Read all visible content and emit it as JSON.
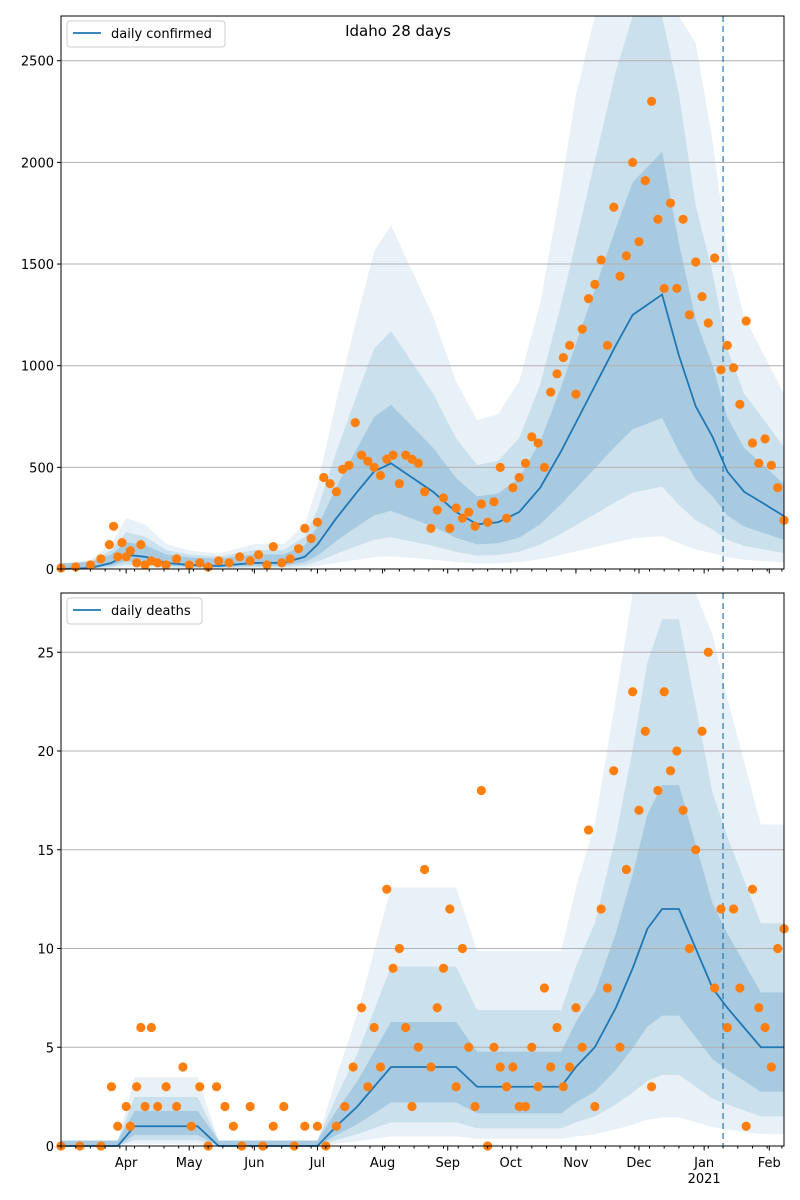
{
  "figure": {
    "title": "Idaho 28 days"
  },
  "colors": {
    "line": "#1f77b4",
    "band": "#1f77b4",
    "observed": "#ff7f0e",
    "grid": "#b0b0b0",
    "vline": "#1f77b4"
  },
  "chart_data": [
    {
      "type": "line",
      "panel": "top",
      "legend": "daily confirmed",
      "legend_position": "top-left",
      "grid": "horizontal",
      "ylim": [
        0,
        2720
      ],
      "yticks": [
        0,
        500,
        1000,
        1500,
        2000,
        2500
      ],
      "x_range": [
        "2020-03-01",
        "2021-02-08"
      ],
      "forecast_start": "2021-01-10",
      "line": {
        "name": "daily confirmed",
        "x": [
          "2020-03-01",
          "2020-03-15",
          "2020-03-25",
          "2020-04-01",
          "2020-04-10",
          "2020-04-20",
          "2020-05-01",
          "2020-05-15",
          "2020-06-01",
          "2020-06-15",
          "2020-06-25",
          "2020-07-01",
          "2020-07-10",
          "2020-07-20",
          "2020-07-28",
          "2020-08-05",
          "2020-08-15",
          "2020-08-25",
          "2020-09-05",
          "2020-09-15",
          "2020-09-25",
          "2020-10-05",
          "2020-10-15",
          "2020-10-25",
          "2020-11-01",
          "2020-11-10",
          "2020-11-20",
          "2020-11-28",
          "2020-12-05",
          "2020-12-12",
          "2020-12-20",
          "2020-12-28",
          "2021-01-05",
          "2021-01-12",
          "2021-01-20",
          "2021-01-28",
          "2021-02-08"
        ],
        "y": [
          0,
          5,
          30,
          70,
          60,
          30,
          20,
          15,
          30,
          30,
          60,
          120,
          250,
          380,
          480,
          520,
          450,
          380,
          280,
          220,
          230,
          280,
          400,
          580,
          720,
          900,
          1100,
          1250,
          1300,
          1350,
          1050,
          800,
          650,
          480,
          380,
          330,
          260
        ]
      },
      "observed": {
        "x": [
          "2020-03-01",
          "2020-03-08",
          "2020-03-15",
          "2020-03-20",
          "2020-03-24",
          "2020-03-26",
          "2020-03-28",
          "2020-03-30",
          "2020-04-01",
          "2020-04-03",
          "2020-04-06",
          "2020-04-08",
          "2020-04-10",
          "2020-04-13",
          "2020-04-16",
          "2020-04-20",
          "2020-04-25",
          "2020-05-01",
          "2020-05-06",
          "2020-05-10",
          "2020-05-15",
          "2020-05-20",
          "2020-05-25",
          "2020-05-30",
          "2020-06-03",
          "2020-06-07",
          "2020-06-10",
          "2020-06-14",
          "2020-06-18",
          "2020-06-22",
          "2020-06-25",
          "2020-06-28",
          "2020-07-01",
          "2020-07-04",
          "2020-07-07",
          "2020-07-10",
          "2020-07-13",
          "2020-07-16",
          "2020-07-19",
          "2020-07-22",
          "2020-07-25",
          "2020-07-28",
          "2020-07-31",
          "2020-08-03",
          "2020-08-06",
          "2020-08-09",
          "2020-08-12",
          "2020-08-15",
          "2020-08-18",
          "2020-08-21",
          "2020-08-24",
          "2020-08-27",
          "2020-08-30",
          "2020-09-02",
          "2020-09-05",
          "2020-09-08",
          "2020-09-11",
          "2020-09-14",
          "2020-09-17",
          "2020-09-20",
          "2020-09-23",
          "2020-09-26",
          "2020-09-29",
          "2020-10-02",
          "2020-10-05",
          "2020-10-08",
          "2020-10-11",
          "2020-10-14",
          "2020-10-17",
          "2020-10-20",
          "2020-10-23",
          "2020-10-26",
          "2020-10-29",
          "2020-11-01",
          "2020-11-04",
          "2020-11-07",
          "2020-11-10",
          "2020-11-13",
          "2020-11-16",
          "2020-11-19",
          "2020-11-22",
          "2020-11-25",
          "2020-11-28",
          "2020-12-01",
          "2020-12-04",
          "2020-12-07",
          "2020-12-10",
          "2020-12-13",
          "2020-12-16",
          "2020-12-19",
          "2020-12-22",
          "2020-12-25",
          "2020-12-28",
          "2020-12-31",
          "2021-01-03",
          "2021-01-06",
          "2021-01-09",
          "2021-01-12",
          "2021-01-15",
          "2021-01-18",
          "2021-01-21",
          "2021-01-24",
          "2021-01-27",
          "2021-01-30",
          "2021-02-02",
          "2021-02-05",
          "2021-02-08"
        ],
        "y": [
          5,
          10,
          20,
          50,
          120,
          210,
          60,
          130,
          60,
          90,
          30,
          120,
          20,
          40,
          30,
          20,
          50,
          20,
          30,
          10,
          40,
          30,
          60,
          40,
          70,
          20,
          110,
          30,
          50,
          100,
          200,
          150,
          230,
          450,
          420,
          380,
          490,
          510,
          720,
          560,
          530,
          500,
          460,
          540,
          560,
          420,
          560,
          540,
          520,
          380,
          200,
          290,
          350,
          200,
          300,
          250,
          280,
          210,
          320,
          230,
          330,
          500,
          250,
          400,
          450,
          520,
          650,
          620,
          500,
          870,
          960,
          1040,
          1100,
          860,
          1180,
          1330,
          1400,
          1520,
          1100,
          1780,
          1440,
          1540,
          2000,
          1610,
          1910,
          2300,
          1720,
          1380,
          1800,
          1380,
          1720,
          1250,
          1510,
          1340,
          1210,
          1530,
          980,
          1100,
          990,
          810,
          1220,
          620,
          520,
          640,
          510,
          400,
          240
        ]
      },
      "bands": [
        "inner",
        "middle",
        "outer"
      ]
    },
    {
      "type": "line",
      "panel": "bottom",
      "legend": "daily deaths",
      "legend_position": "top-left",
      "grid": "horizontal",
      "ylim": [
        0,
        28
      ],
      "yticks": [
        0,
        5,
        10,
        15,
        20,
        25
      ],
      "xtick_labels": [
        "Apr",
        "May",
        "Jun",
        "Jul",
        "Aug",
        "Sep",
        "Oct",
        "Nov",
        "Dec",
        "Jan",
        "Feb"
      ],
      "xtick_year": "2021",
      "x_range": [
        "2020-03-01",
        "2021-02-08"
      ],
      "forecast_start": "2021-01-10",
      "line": {
        "name": "daily deaths",
        "x": [
          "2020-03-01",
          "2020-03-28",
          "2020-04-05",
          "2020-04-15",
          "2020-04-25",
          "2020-05-05",
          "2020-05-15",
          "2020-06-01",
          "2020-06-15",
          "2020-07-01",
          "2020-07-10",
          "2020-07-20",
          "2020-07-28",
          "2020-08-05",
          "2020-08-15",
          "2020-08-25",
          "2020-09-05",
          "2020-09-15",
          "2020-09-25",
          "2020-10-05",
          "2020-10-15",
          "2020-10-25",
          "2020-11-01",
          "2020-11-10",
          "2020-11-20",
          "2020-11-28",
          "2020-12-05",
          "2020-12-12",
          "2020-12-20",
          "2020-12-28",
          "2021-01-05",
          "2021-01-12",
          "2021-01-20",
          "2021-01-28",
          "2021-02-08"
        ],
        "y": [
          0,
          0,
          1,
          1,
          1,
          1,
          0,
          0,
          0,
          0,
          1,
          2,
          3,
          4,
          4,
          4,
          4,
          3,
          3,
          3,
          3,
          3,
          4,
          5,
          7,
          9,
          11,
          12,
          12,
          10,
          8,
          7,
          6,
          5,
          5
        ]
      },
      "observed": {
        "x": [
          "2020-03-01",
          "2020-03-10",
          "2020-03-20",
          "2020-03-25",
          "2020-03-28",
          "2020-04-01",
          "2020-04-03",
          "2020-04-06",
          "2020-04-08",
          "2020-04-10",
          "2020-04-13",
          "2020-04-16",
          "2020-04-20",
          "2020-04-25",
          "2020-04-28",
          "2020-05-02",
          "2020-05-06",
          "2020-05-10",
          "2020-05-14",
          "2020-05-18",
          "2020-05-22",
          "2020-05-26",
          "2020-05-30",
          "2020-06-05",
          "2020-06-10",
          "2020-06-15",
          "2020-06-20",
          "2020-06-25",
          "2020-07-01",
          "2020-07-05",
          "2020-07-10",
          "2020-07-14",
          "2020-07-18",
          "2020-07-22",
          "2020-07-25",
          "2020-07-28",
          "2020-07-31",
          "2020-08-03",
          "2020-08-06",
          "2020-08-09",
          "2020-08-12",
          "2020-08-15",
          "2020-08-18",
          "2020-08-21",
          "2020-08-24",
          "2020-08-27",
          "2020-08-30",
          "2020-09-02",
          "2020-09-05",
          "2020-09-08",
          "2020-09-11",
          "2020-09-14",
          "2020-09-17",
          "2020-09-20",
          "2020-09-23",
          "2020-09-26",
          "2020-09-29",
          "2020-10-02",
          "2020-10-05",
          "2020-10-08",
          "2020-10-11",
          "2020-10-14",
          "2020-10-17",
          "2020-10-20",
          "2020-10-23",
          "2020-10-26",
          "2020-10-29",
          "2020-11-01",
          "2020-11-04",
          "2020-11-07",
          "2020-11-10",
          "2020-11-13",
          "2020-11-16",
          "2020-11-19",
          "2020-11-22",
          "2020-11-25",
          "2020-11-28",
          "2020-12-01",
          "2020-12-04",
          "2020-12-07",
          "2020-12-10",
          "2020-12-13",
          "2020-12-16",
          "2020-12-19",
          "2020-12-22",
          "2020-12-25",
          "2020-12-28",
          "2020-12-31",
          "2021-01-03",
          "2021-01-06",
          "2021-01-09",
          "2021-01-12",
          "2021-01-15",
          "2021-01-18",
          "2021-01-21",
          "2021-01-24",
          "2021-01-27",
          "2021-01-30",
          "2021-02-02",
          "2021-02-05",
          "2021-02-08"
        ],
        "y": [
          0,
          0,
          0,
          3,
          1,
          2,
          1,
          3,
          6,
          2,
          6,
          2,
          3,
          2,
          4,
          1,
          3,
          0,
          3,
          2,
          1,
          0,
          2,
          0,
          1,
          2,
          0,
          1,
          1,
          0,
          1,
          2,
          4,
          7,
          3,
          6,
          4,
          13,
          9,
          10,
          6,
          2,
          5,
          14,
          4,
          7,
          9,
          12,
          3,
          10,
          5,
          2,
          18,
          0,
          5,
          4,
          3,
          4,
          2,
          2,
          5,
          3,
          8,
          4,
          6,
          3,
          4,
          7,
          5,
          16,
          2,
          12,
          8,
          19,
          5,
          14,
          23,
          17,
          21,
          3,
          18,
          23,
          19,
          20,
          17,
          10,
          15,
          21,
          25,
          8,
          12,
          6,
          12,
          8,
          1,
          13,
          7,
          6,
          4,
          10,
          11
        ]
      },
      "bands": [
        "inner",
        "middle",
        "outer"
      ]
    }
  ]
}
